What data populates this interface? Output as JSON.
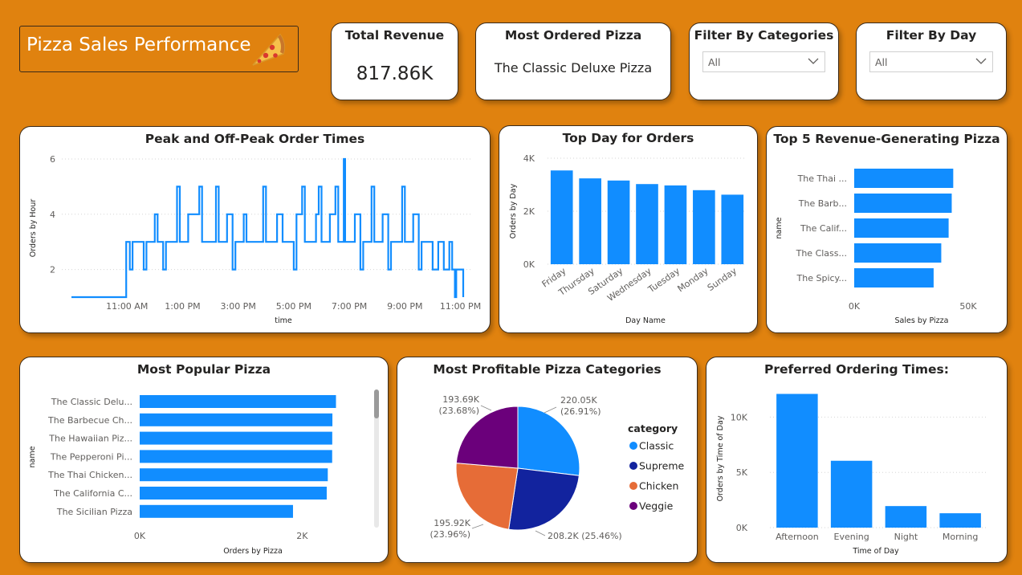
{
  "dashboard": {
    "title": "Pizza Sales Performance",
    "colors": {
      "background": "#E0820F",
      "bar": "#118DFF",
      "card": "#FFFFFF"
    }
  },
  "kpis": {
    "total_revenue_label": "Total Revenue",
    "total_revenue_value": "817.86K",
    "most_ordered_label": "Most Ordered Pizza",
    "most_ordered_value": "The Classic Deluxe Pizza"
  },
  "filters": {
    "categories_label": "Filter By Categories",
    "categories_value": "All",
    "day_label": "Filter By Day",
    "day_value": "All"
  },
  "chart_data": [
    {
      "id": "peak",
      "type": "line",
      "title": "Peak and Off-Peak Order Times",
      "xlabel": "time",
      "ylabel": "Orders by Hour",
      "x_ticks": [
        "11:00 AM",
        "1:00 PM",
        "3:00 PM",
        "5:00 PM",
        "7:00 PM",
        "9:00 PM",
        "11:00 PM"
      ],
      "x_tick_hours": [
        11,
        13,
        15,
        17,
        19,
        21,
        23
      ],
      "x_range": [
        9.0,
        23.1
      ],
      "ylim": [
        1,
        6
      ],
      "y_ticks": [
        2,
        4,
        6
      ],
      "series": [
        {
          "name": "Orders by Hour",
          "points": [
            [
              9.0,
              1
            ],
            [
              10.97,
              1
            ],
            [
              10.97,
              3
            ],
            [
              11.1,
              3
            ],
            [
              11.1,
              2
            ],
            [
              11.2,
              2
            ],
            [
              11.2,
              3
            ],
            [
              11.6,
              3
            ],
            [
              11.6,
              2
            ],
            [
              11.7,
              2
            ],
            [
              11.7,
              3
            ],
            [
              12.0,
              3
            ],
            [
              12.0,
              4
            ],
            [
              12.1,
              4
            ],
            [
              12.1,
              3
            ],
            [
              12.3,
              3
            ],
            [
              12.3,
              2
            ],
            [
              12.4,
              2
            ],
            [
              12.4,
              3
            ],
            [
              12.8,
              3
            ],
            [
              12.8,
              5
            ],
            [
              12.9,
              5
            ],
            [
              12.9,
              3
            ],
            [
              13.2,
              3
            ],
            [
              13.2,
              4
            ],
            [
              13.6,
              4
            ],
            [
              13.6,
              5
            ],
            [
              13.7,
              5
            ],
            [
              13.7,
              3
            ],
            [
              14.2,
              3
            ],
            [
              14.2,
              5
            ],
            [
              14.3,
              5
            ],
            [
              14.3,
              3
            ],
            [
              14.6,
              3
            ],
            [
              14.6,
              4
            ],
            [
              14.8,
              4
            ],
            [
              14.8,
              2
            ],
            [
              14.9,
              2
            ],
            [
              14.9,
              3
            ],
            [
              15.2,
              3
            ],
            [
              15.2,
              4
            ],
            [
              15.3,
              4
            ],
            [
              15.3,
              3
            ],
            [
              15.9,
              3
            ],
            [
              15.9,
              5
            ],
            [
              16.0,
              5
            ],
            [
              16.0,
              3
            ],
            [
              16.4,
              3
            ],
            [
              16.4,
              4
            ],
            [
              16.6,
              4
            ],
            [
              16.6,
              3
            ],
            [
              17.0,
              3
            ],
            [
              17.0,
              2
            ],
            [
              17.1,
              2
            ],
            [
              17.1,
              4
            ],
            [
              17.3,
              4
            ],
            [
              17.3,
              5
            ],
            [
              17.4,
              5
            ],
            [
              17.4,
              3
            ],
            [
              17.8,
              3
            ],
            [
              17.8,
              4
            ],
            [
              17.9,
              4
            ],
            [
              17.9,
              5
            ],
            [
              18.0,
              5
            ],
            [
              18.0,
              3
            ],
            [
              18.3,
              3
            ],
            [
              18.3,
              4
            ],
            [
              18.5,
              4
            ],
            [
              18.5,
              5
            ],
            [
              18.6,
              5
            ],
            [
              18.6,
              3
            ],
            [
              18.8,
              3
            ],
            [
              18.8,
              6
            ],
            [
              18.85,
              6
            ],
            [
              18.85,
              3
            ],
            [
              19.2,
              3
            ],
            [
              19.2,
              4
            ],
            [
              19.4,
              4
            ],
            [
              19.4,
              2
            ],
            [
              19.5,
              2
            ],
            [
              19.5,
              3
            ],
            [
              19.8,
              3
            ],
            [
              19.8,
              5
            ],
            [
              19.9,
              5
            ],
            [
              19.9,
              3
            ],
            [
              20.2,
              3
            ],
            [
              20.2,
              4
            ],
            [
              20.4,
              4
            ],
            [
              20.4,
              2
            ],
            [
              20.5,
              2
            ],
            [
              20.5,
              3
            ],
            [
              20.9,
              3
            ],
            [
              20.9,
              5
            ],
            [
              21.0,
              5
            ],
            [
              21.0,
              3
            ],
            [
              21.3,
              3
            ],
            [
              21.3,
              4
            ],
            [
              21.5,
              4
            ],
            [
              21.5,
              2
            ],
            [
              21.6,
              2
            ],
            [
              21.6,
              3
            ],
            [
              22.0,
              3
            ],
            [
              22.0,
              2
            ],
            [
              22.2,
              2
            ],
            [
              22.2,
              3
            ],
            [
              22.4,
              3
            ],
            [
              22.4,
              2
            ],
            [
              22.6,
              2
            ],
            [
              22.6,
              3
            ],
            [
              22.7,
              3
            ],
            [
              22.7,
              2
            ],
            [
              22.8,
              2
            ],
            [
              22.8,
              1
            ],
            [
              22.85,
              1
            ],
            [
              22.85,
              2
            ],
            [
              23.1,
              2
            ],
            [
              23.1,
              1
            ]
          ]
        }
      ]
    },
    {
      "id": "topday",
      "type": "bar",
      "title": "Top Day for Orders",
      "xlabel": "Day Name",
      "ylabel": "Orders by Day",
      "categories": [
        "Friday",
        "Thursday",
        "Saturday",
        "Wednesday",
        "Tuesday",
        "Monday",
        "Sunday"
      ],
      "values": [
        3538,
        3239,
        3158,
        3024,
        2973,
        2794,
        2624
      ],
      "ylim": [
        0,
        4000
      ],
      "y_ticks": [
        0,
        2000,
        4000
      ],
      "y_tick_labels": [
        "0K",
        "2K",
        "4K"
      ]
    },
    {
      "id": "top5",
      "type": "bar",
      "orientation": "horizontal",
      "title": "Top 5 Revenue-Generating Pizza",
      "xlabel": "Sales by Pizza",
      "ylabel": "name",
      "categories": [
        "The Thai ...",
        "The Barb...",
        "The Calif...",
        "The Class...",
        "The Spicy..."
      ],
      "values": [
        43434,
        42768,
        41410,
        38180,
        34831
      ],
      "xlim": [
        0,
        50000
      ],
      "x_ticks": [
        0,
        50000
      ],
      "x_tick_labels": [
        "0K",
        "50K"
      ]
    },
    {
      "id": "popular",
      "type": "bar",
      "orientation": "horizontal",
      "title": "Most Popular Pizza",
      "xlabel": "Orders by Pizza",
      "ylabel": "name",
      "categories": [
        "The Classic Delu...",
        "The Barbecue Ch...",
        "The Hawaiian Piz...",
        "The Pepperoni Pi...",
        "The Thai Chicken...",
        "The California C...",
        "The Sicilian Pizza"
      ],
      "values": [
        2416,
        2372,
        2370,
        2369,
        2315,
        2302,
        1887
      ],
      "xlim": [
        0,
        2500
      ],
      "x_ticks": [
        0,
        2000
      ],
      "x_tick_labels": [
        "0K",
        "2K"
      ]
    },
    {
      "id": "categories",
      "type": "pie",
      "title": "Most Profitable Pizza Categories",
      "legend_title": "category",
      "legend_position": "right",
      "categories": [
        "Classic",
        "Supreme",
        "Chicken",
        "Veggie"
      ],
      "values": [
        220050,
        208200,
        195920,
        193690
      ],
      "labels": [
        "220.05K (26.91%)",
        "208.2K (25.46%)",
        "195.92K (23.96%)",
        "193.69K (23.68%)"
      ],
      "label_value_lines": [
        "220.05K",
        "208.2K (25.46%)",
        "195.92K",
        "193.69K"
      ],
      "label_pct_lines": [
        "(26.91%)",
        "",
        "(23.96%)",
        "(23.68%)"
      ],
      "colors": [
        "#118DFF",
        "#12239E",
        "#E66C37",
        "#6B007B"
      ]
    },
    {
      "id": "timeofday",
      "type": "bar",
      "title": "Preferred Ordering Times:",
      "xlabel": "Time of Day",
      "ylabel": "Orders by Time of Day",
      "categories": [
        "Afternoon",
        "Evening",
        "Night",
        "Morning"
      ],
      "values": [
        12100,
        6050,
        1950,
        1300
      ],
      "ylim": [
        0,
        12500
      ],
      "y_ticks": [
        0,
        5000,
        10000
      ],
      "y_tick_labels": [
        "0K",
        "5K",
        "10K"
      ]
    }
  ]
}
